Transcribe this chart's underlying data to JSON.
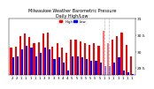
{
  "title": "Milwaukee Weather Barometric Pressure",
  "subtitle": "Daily High/Low",
  "background_color": "#ffffff",
  "high_color": "#ff0000",
  "low_color": "#0000ff",
  "ylim": [
    29.3,
    31.0
  ],
  "yticks": [
    29.5,
    30.0,
    30.5,
    31.0
  ],
  "ytick_labels": [
    "29.5",
    "30",
    "30.5",
    "31"
  ],
  "bar_width": 0.42,
  "highs": [
    30.12,
    30.15,
    30.47,
    30.55,
    30.44,
    30.25,
    30.3,
    30.55,
    30.57,
    30.15,
    30.27,
    30.12,
    29.97,
    30.37,
    30.37,
    30.32,
    30.27,
    30.22,
    30.27,
    30.17,
    30.65,
    30.27,
    30.37,
    30.47,
    30.57,
    30.22,
    29.87
  ],
  "lows": [
    29.82,
    29.85,
    30.07,
    30.17,
    30.12,
    29.87,
    29.97,
    30.12,
    30.07,
    29.77,
    29.82,
    29.67,
    29.42,
    29.87,
    29.87,
    29.82,
    29.77,
    29.72,
    29.72,
    29.67,
    29.57,
    29.57,
    29.67,
    29.82,
    29.42,
    29.37,
    29.32
  ],
  "xlabels": [
    "2",
    "2",
    "1",
    "1",
    "1",
    "1",
    "1",
    "3",
    "3",
    "3",
    "3",
    "4",
    "4",
    "5",
    "5",
    "5",
    "5",
    "5",
    "5",
    "5",
    "1",
    "1",
    "1",
    "1",
    "1",
    "1",
    "1"
  ],
  "dashed_indices": [
    20,
    21
  ],
  "legend_high": "High",
  "legend_low": "Low"
}
